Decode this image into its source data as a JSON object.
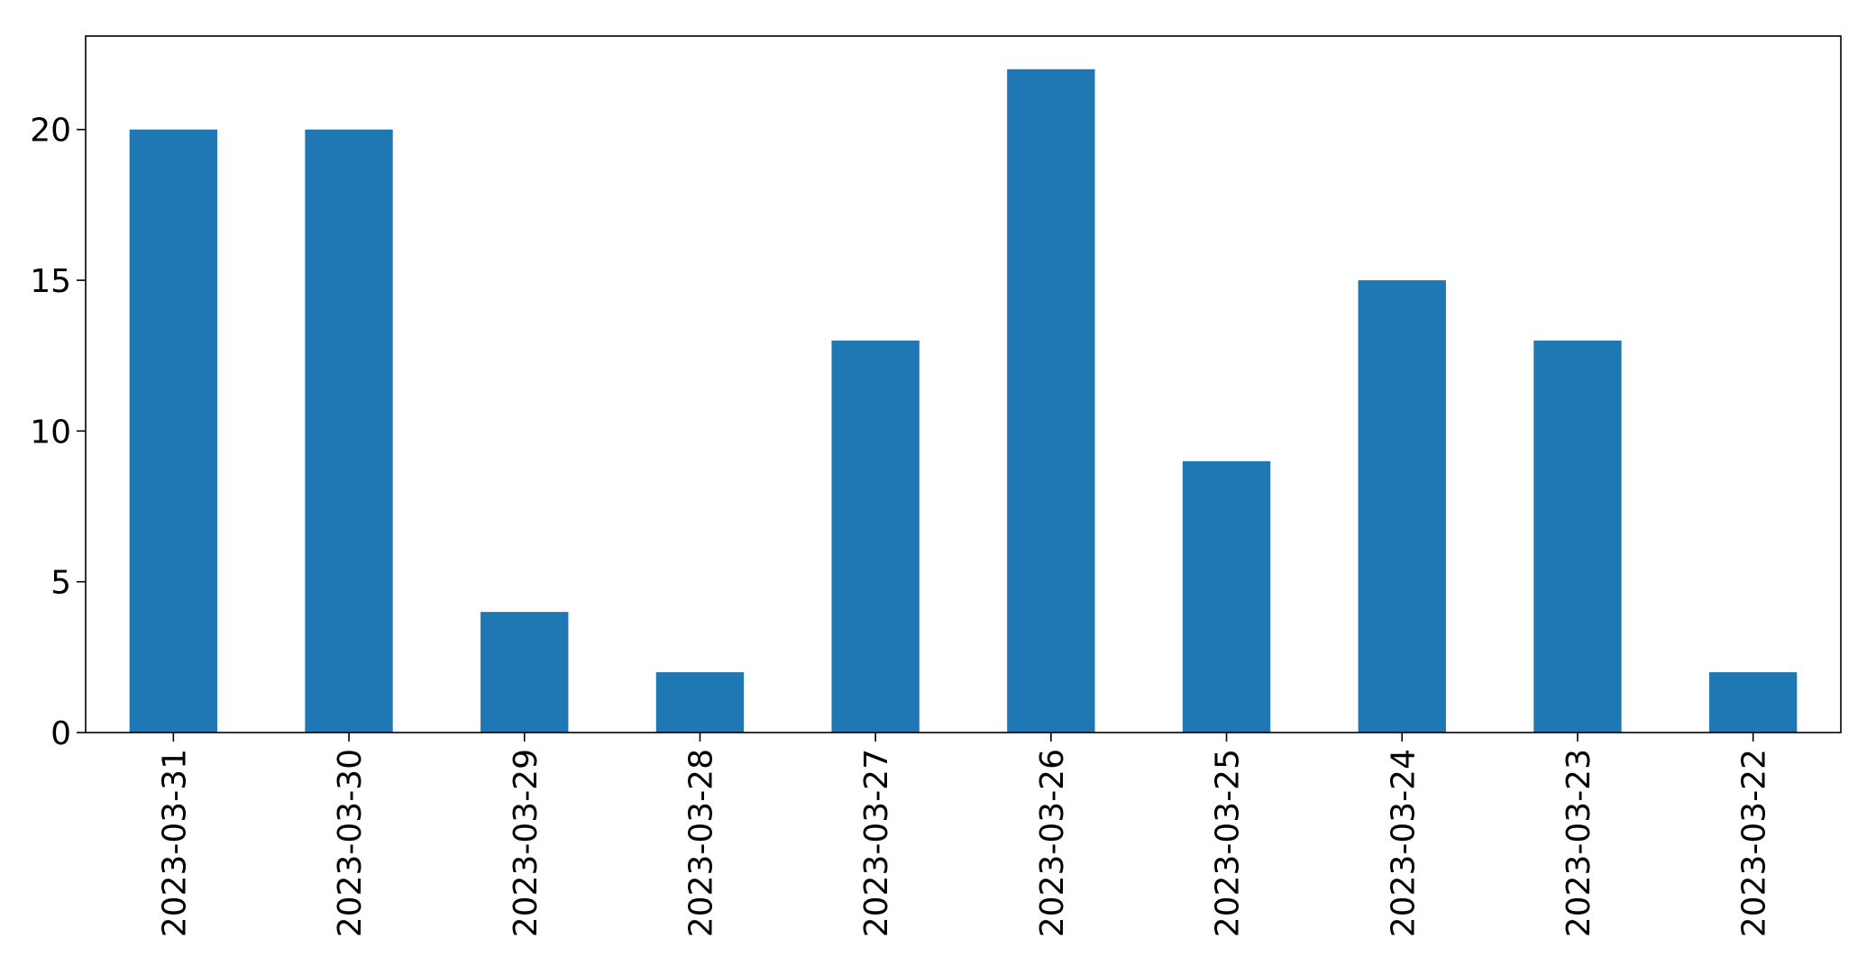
{
  "chart_data": {
    "type": "bar",
    "title": "",
    "xlabel": "",
    "ylabel": "",
    "categories": [
      "2023-03-31",
      "2023-03-30",
      "2023-03-29",
      "2023-03-28",
      "2023-03-27",
      "2023-03-26",
      "2023-03-25",
      "2023-03-24",
      "2023-03-23",
      "2023-03-22"
    ],
    "values": [
      20,
      20,
      4,
      2,
      13,
      22,
      9,
      15,
      13,
      2
    ],
    "ylim": [
      0,
      23.1
    ],
    "yticks": [
      0,
      5,
      10,
      15,
      20
    ],
    "ytick_labels": [
      "0",
      "5",
      "10",
      "15",
      "20"
    ],
    "bar_color": "#1f77b4",
    "grid": false,
    "legend": "none",
    "xtick_rotation": "vertical"
  }
}
